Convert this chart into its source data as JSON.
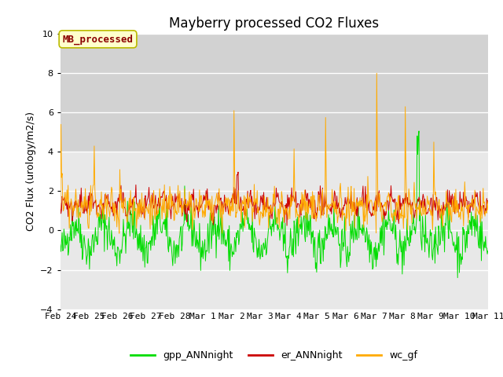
{
  "title": "Mayberry processed CO2 Fluxes",
  "ylabel": "CO2 Flux (urology/m2/s)",
  "ylim": [
    -4,
    10
  ],
  "yticks": [
    -4,
    -2,
    0,
    2,
    4,
    6,
    8,
    10
  ],
  "legend_label": "MB_processed",
  "legend_bg": "#ffffcc",
  "legend_edge": "#cccc00",
  "legend_text_color": "#8b0000",
  "series": [
    "gpp_ANNnight",
    "er_ANNnight",
    "wc_gf"
  ],
  "colors": [
    "#00dd00",
    "#cc0000",
    "#ffaa00"
  ],
  "n_points": 720,
  "seed": 42,
  "plot_bg": "#e8e8e8",
  "title_fontsize": 12,
  "axis_fontsize": 9,
  "tick_fontsize": 8,
  "legend_fontsize": 9,
  "shadeband_color": "#d0d0d0"
}
